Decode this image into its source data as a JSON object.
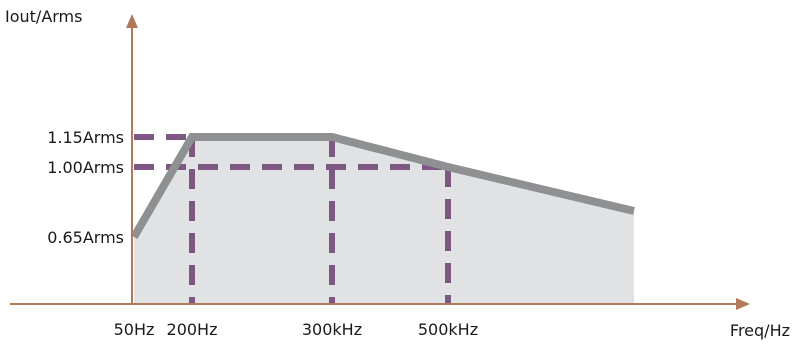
{
  "chart_data": {
    "type": "area",
    "ylabel": "Iout/Arms",
    "xlabel": "Freq/Hz",
    "x_categories": [
      "50Hz",
      "200Hz",
      "300kHz",
      "500kHz",
      ""
    ],
    "y_ticks": [
      "0.65Arms",
      "1.00Arms",
      "1.15Arms"
    ],
    "y_tick_values": [
      0.65,
      1.0,
      1.15
    ],
    "ylim": [
      0.0,
      1.6
    ],
    "series": [
      {
        "points": [
          {
            "x": "50Hz",
            "y": 0.65
          },
          {
            "x": "200Hz",
            "y": 1.15
          },
          {
            "x": "300kHz",
            "y": 1.15
          },
          {
            "x": "500kHz",
            "y": 1.0
          },
          {
            "x": "",
            "y": 0.78
          }
        ]
      }
    ],
    "reference_lines": [
      {
        "y": 1.15,
        "from": "50Hz",
        "to": "200Hz"
      },
      {
        "y": 1.0,
        "from": "200Hz",
        "to": "500kHz"
      }
    ],
    "drop_lines": [
      "200Hz",
      "300kHz",
      "500kHz"
    ],
    "grid": false,
    "legend": "none",
    "colors": {
      "axis": "#b07a5a",
      "line": "#8f9091",
      "fill": "#e1e2e4",
      "dashed": "#7c5882"
    }
  }
}
